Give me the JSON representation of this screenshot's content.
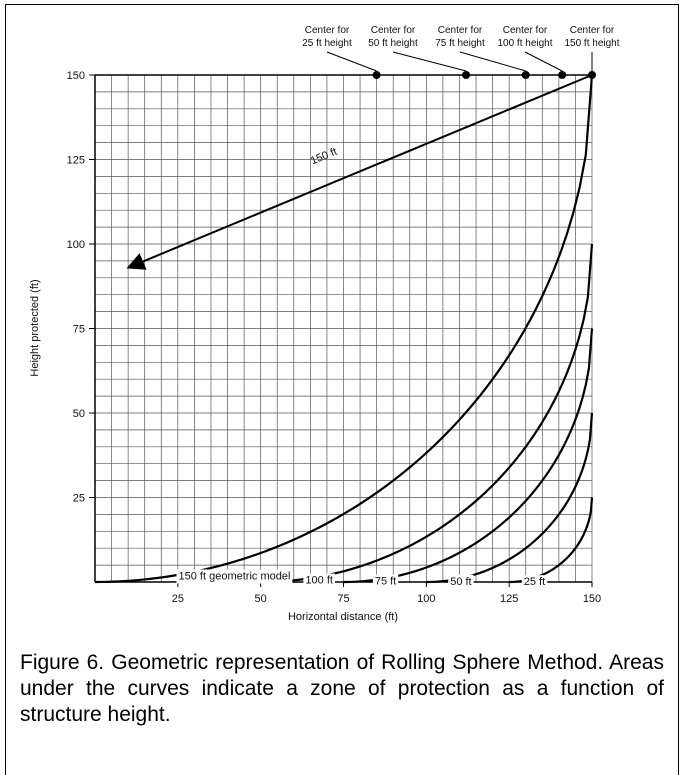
{
  "chart_data": {
    "type": "line",
    "title": "",
    "xlabel": "Horizontal distance (ft)",
    "ylabel": "Height protected (ft)",
    "xlim": [
      0,
      150
    ],
    "ylim": [
      0,
      150
    ],
    "grid": true,
    "grid_step": 5,
    "x_ticks": [
      25,
      50,
      75,
      100,
      125,
      150
    ],
    "y_ticks": [
      25,
      50,
      75,
      100,
      125,
      150
    ],
    "series": [
      {
        "name": "25 ft",
        "sphere_radius": 25,
        "label": "25 ft"
      },
      {
        "name": "50 ft",
        "sphere_radius": 50,
        "label": "50 ft"
      },
      {
        "name": "75 ft",
        "sphere_radius": 75,
        "label": "75 ft"
      },
      {
        "name": "100 ft",
        "sphere_radius": 100,
        "label": "100 ft"
      },
      {
        "name": "150 ft",
        "sphere_radius": 150,
        "label": "150 ft geometric model"
      }
    ],
    "centers": [
      {
        "x": 85,
        "y": 150,
        "label_line1": "Center for",
        "label_line2": "25 ft height"
      },
      {
        "x": 112,
        "y": 150,
        "label_line1": "Center for",
        "label_line2": "50 ft height"
      },
      {
        "x": 130,
        "y": 150,
        "label_line1": "Center for",
        "label_line2": "75 ft height"
      },
      {
        "x": 141,
        "y": 150,
        "label_line1": "Center for",
        "label_line2": "100 ft height"
      },
      {
        "x": 150,
        "y": 150,
        "label_line1": "Center for",
        "label_line2": "150 ft height"
      }
    ],
    "radius_arrow": {
      "from": [
        150,
        150
      ],
      "to": [
        10,
        93
      ],
      "label": "150 ft"
    }
  },
  "caption": "Figure 6. Geometric representation of Rolling Sphere Method. Areas under the curves indicate a zone of protection as a function of structure height."
}
